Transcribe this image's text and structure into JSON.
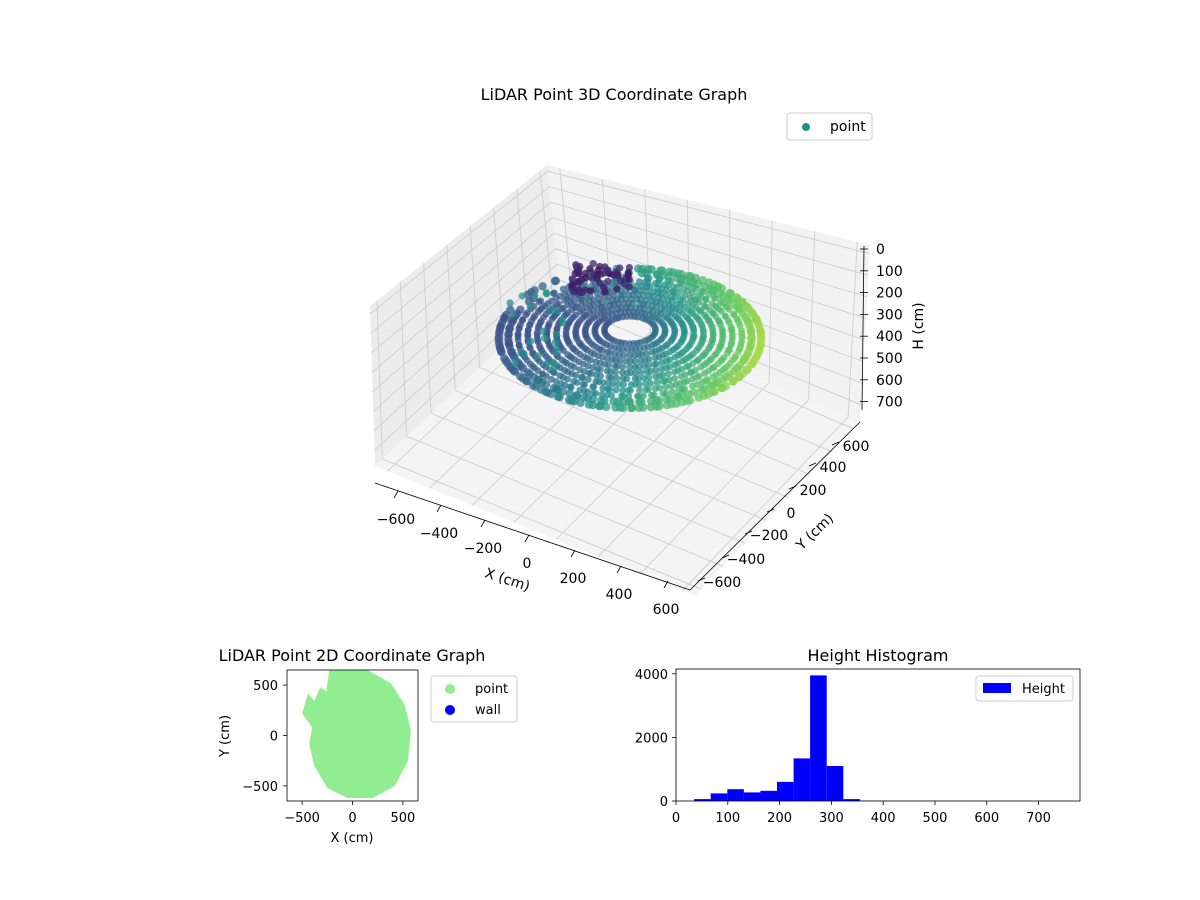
{
  "chart_data": [
    {
      "type": "scatter",
      "projection": "3d",
      "title": "LiDAR Point 3D Coordinate Graph",
      "xlabel": "X (cm)",
      "ylabel": "Y (cm)",
      "zlabel": "H (cm)",
      "xlim": [
        -700,
        700
      ],
      "ylim": [
        -700,
        700
      ],
      "zlim": [
        750,
        0
      ],
      "zaxis_inverted": true,
      "xticks": [
        "−600",
        "−400",
        "−200",
        "0",
        "200",
        "400",
        "600"
      ],
      "yticks": [
        "−600",
        "−400",
        "−200",
        "0",
        "200",
        "400",
        "600"
      ],
      "zticks": [
        "0",
        "100",
        "200",
        "300",
        "400",
        "500",
        "600",
        "700"
      ],
      "colormap": "viridis",
      "legend": {
        "entries": [
          "point"
        ],
        "placement": "top-right",
        "marker_color": "#21918c"
      },
      "series": [
        {
          "name": "point",
          "description_values": "bowl-shaped dense cloud, radius approx 0-600 cm, height approx 50-350 cm"
        }
      ],
      "grid": true
    },
    {
      "type": "scatter",
      "title": "LiDAR Point 2D Coordinate Graph",
      "xlabel": "X (cm)",
      "ylabel": "Y (cm)",
      "xlim": [
        -650,
        650
      ],
      "ylim": [
        -650,
        650
      ],
      "xticks": [
        "−500",
        "0",
        "500"
      ],
      "yticks": [
        "500",
        "0",
        "−500"
      ],
      "legend": {
        "entries": [
          "point",
          "wall"
        ],
        "placement": "outside-right"
      },
      "series": [
        {
          "name": "point",
          "color": "#90ee90"
        },
        {
          "name": "wall",
          "color": "#0000ff"
        }
      ]
    },
    {
      "type": "bar",
      "title": "Height Histogram",
      "xlim": [
        0,
        780
      ],
      "ylim": [
        0,
        4150
      ],
      "xticks": [
        "0",
        "100",
        "200",
        "300",
        "400",
        "500",
        "600",
        "700"
      ],
      "yticks": [
        "0",
        "2000",
        "4000"
      ],
      "legend": {
        "entries": [
          "Height"
        ],
        "placement": "top-right"
      },
      "bar_color": "#0000ff",
      "series": [
        {
          "name": "Height",
          "bins": [
            [
              35,
              67,
              60
            ],
            [
              67,
              99,
              240
            ],
            [
              99,
              131,
              370
            ],
            [
              131,
              163,
              270
            ],
            [
              163,
              195,
              320
            ],
            [
              195,
              227,
              600
            ],
            [
              227,
              259,
              1340
            ],
            [
              259,
              291,
              3950
            ],
            [
              291,
              323,
              1100
            ],
            [
              323,
              355,
              60
            ],
            [
              355,
              387,
              10
            ],
            [
              387,
              419,
              5
            ],
            [
              419,
              451,
              4
            ],
            [
              451,
              483,
              3
            ],
            [
              483,
              515,
              3
            ],
            [
              515,
              547,
              2
            ],
            [
              547,
              579,
              2
            ],
            [
              579,
              611,
              2
            ],
            [
              611,
              643,
              2
            ],
            [
              643,
              675,
              1
            ],
            [
              675,
              707,
              1
            ],
            [
              707,
              739,
              1
            ],
            [
              739,
              771,
              1
            ]
          ]
        }
      ]
    }
  ]
}
